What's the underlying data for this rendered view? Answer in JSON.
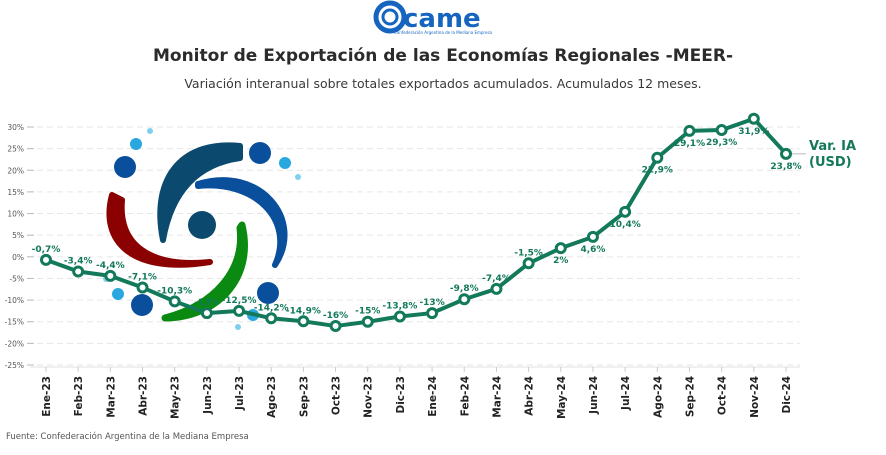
{
  "header": {
    "logo_text": "came",
    "logo_subtitle": "Confederación Argentina de la Mediana Empresa",
    "title": "Monitor de Exportación de las Economías Regionales -MEER-",
    "subtitle": "Variación interanual sobre totales exportados acumulados. Acumulados 12 meses."
  },
  "footer": {
    "source": "Fuente: Confederación Argentina de la Mediana Empresa"
  },
  "colors": {
    "series": "#13795b",
    "logo_blue": "#1565c0",
    "decor_dark_blue": "#0b4a6e",
    "decor_blue": "#0a4f9c",
    "decor_red": "#8b0000",
    "decor_green": "#0a8a10",
    "decor_light_blue": "#29a8e0"
  },
  "chart_data": {
    "type": "line",
    "title": "Monitor de Exportación de las Economías Regionales -MEER-",
    "subtitle": "Variación interanual sobre totales exportados acumulados. Acumulados 12 meses.",
    "xlabel": "",
    "ylabel": "",
    "ylim": [
      -25,
      30
    ],
    "yticks": [
      30,
      25,
      20,
      15,
      10,
      5,
      0,
      -5,
      -10,
      -15,
      -20,
      -25
    ],
    "ytick_labels": [
      "30%",
      "25%",
      "20%",
      "15%",
      "10%",
      "5%",
      "0%",
      "-5%",
      "-10%",
      "-15%",
      "-20%",
      "-25%"
    ],
    "grid": true,
    "legend": "right",
    "categories": [
      "Ene-23",
      "Feb-23",
      "Mar-23",
      "Abr-23",
      "May-23",
      "Jun-23",
      "Jul-23",
      "Ago-23",
      "Sep-23",
      "Oct-23",
      "Nov-23",
      "Dic-23",
      "Ene-24",
      "Feb-24",
      "Mar-24",
      "Abr-24",
      "May-24",
      "Jun-24",
      "Jul-24",
      "Ago-24",
      "Sep-24",
      "Oct-24",
      "Nov-24",
      "Dic-24"
    ],
    "series": [
      {
        "name": "Var. IA (USD)",
        "name_lines": [
          "Var. IA",
          "(USD)"
        ],
        "values": [
          -0.7,
          -3.4,
          -4.4,
          -7.1,
          -10.3,
          -13,
          -12.5,
          -14.2,
          -14.9,
          -16,
          -15,
          -13.8,
          -13,
          -9.8,
          -7.4,
          -1.5,
          2,
          4.6,
          10.4,
          22.9,
          29.1,
          29.3,
          31.9,
          23.8
        ],
        "labels": [
          "-0,7%",
          "-3,4%",
          "-4,4%",
          "-7,1%",
          "-10,3%",
          "-13%",
          "-12,5%",
          "-14,2%",
          "-14,9%",
          "-16%",
          "-15%",
          "-13,8%",
          "-13%",
          "-9,8%",
          "-7,4%",
          "-1,5%",
          "2%",
          "4,6%",
          "10,4%",
          "22,9%",
          "29,1%",
          "29,3%",
          "31,9%",
          "23,8%"
        ]
      }
    ]
  }
}
